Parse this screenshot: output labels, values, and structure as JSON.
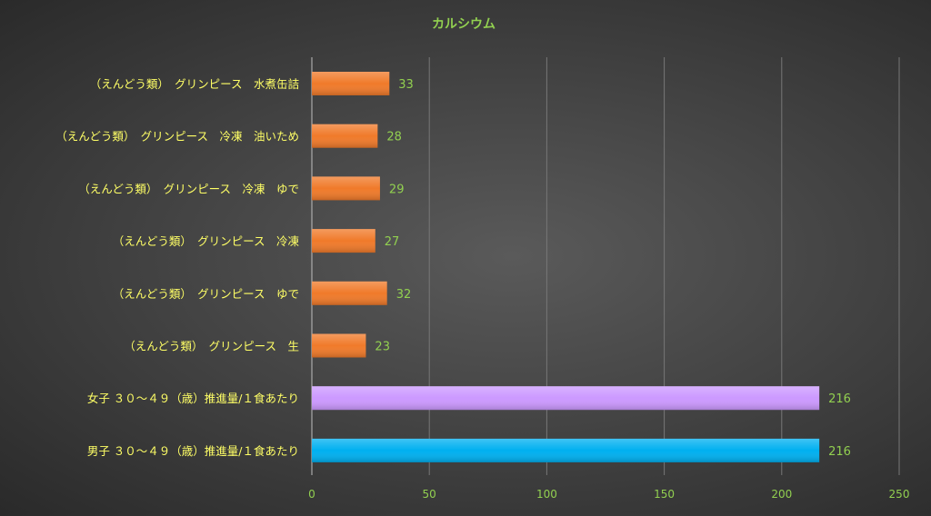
{
  "chart_data": {
    "type": "bar",
    "orientation": "horizontal",
    "title": "カルシウム",
    "categories": [
      "（えんどう類）　グリンピース　水煮缶詰",
      "（えんどう類）　グリンピース　冷凍　油いため",
      "（えんどう類）　グリンピース　冷凍　ゆで",
      "（えんどう類）　グリンピース　冷凍",
      "（えんどう類）　グリンピース　ゆで",
      "（えんどう類）　グリンピース　生",
      "女子 ３０～４９（歳）推進量/１食あたり",
      "男子 ３０～４９（歳）推進量/１食あたり"
    ],
    "values": [
      33,
      28,
      29,
      27,
      32,
      23,
      216,
      216
    ],
    "bar_colors": [
      "#f07a2a",
      "#f07a2a",
      "#f07a2a",
      "#f07a2a",
      "#f07a2a",
      "#f07a2a",
      "#cc99ff",
      "#00b0f0"
    ],
    "xlim": [
      0,
      250
    ],
    "xticks": [
      0,
      50,
      100,
      150,
      200,
      250
    ],
    "grid": true,
    "legend": "none",
    "colors": {
      "title": "#92d050",
      "category_labels": "#ffff66",
      "tick_labels": "#92d050",
      "data_labels": "#92d050",
      "grid": "#777777"
    }
  }
}
